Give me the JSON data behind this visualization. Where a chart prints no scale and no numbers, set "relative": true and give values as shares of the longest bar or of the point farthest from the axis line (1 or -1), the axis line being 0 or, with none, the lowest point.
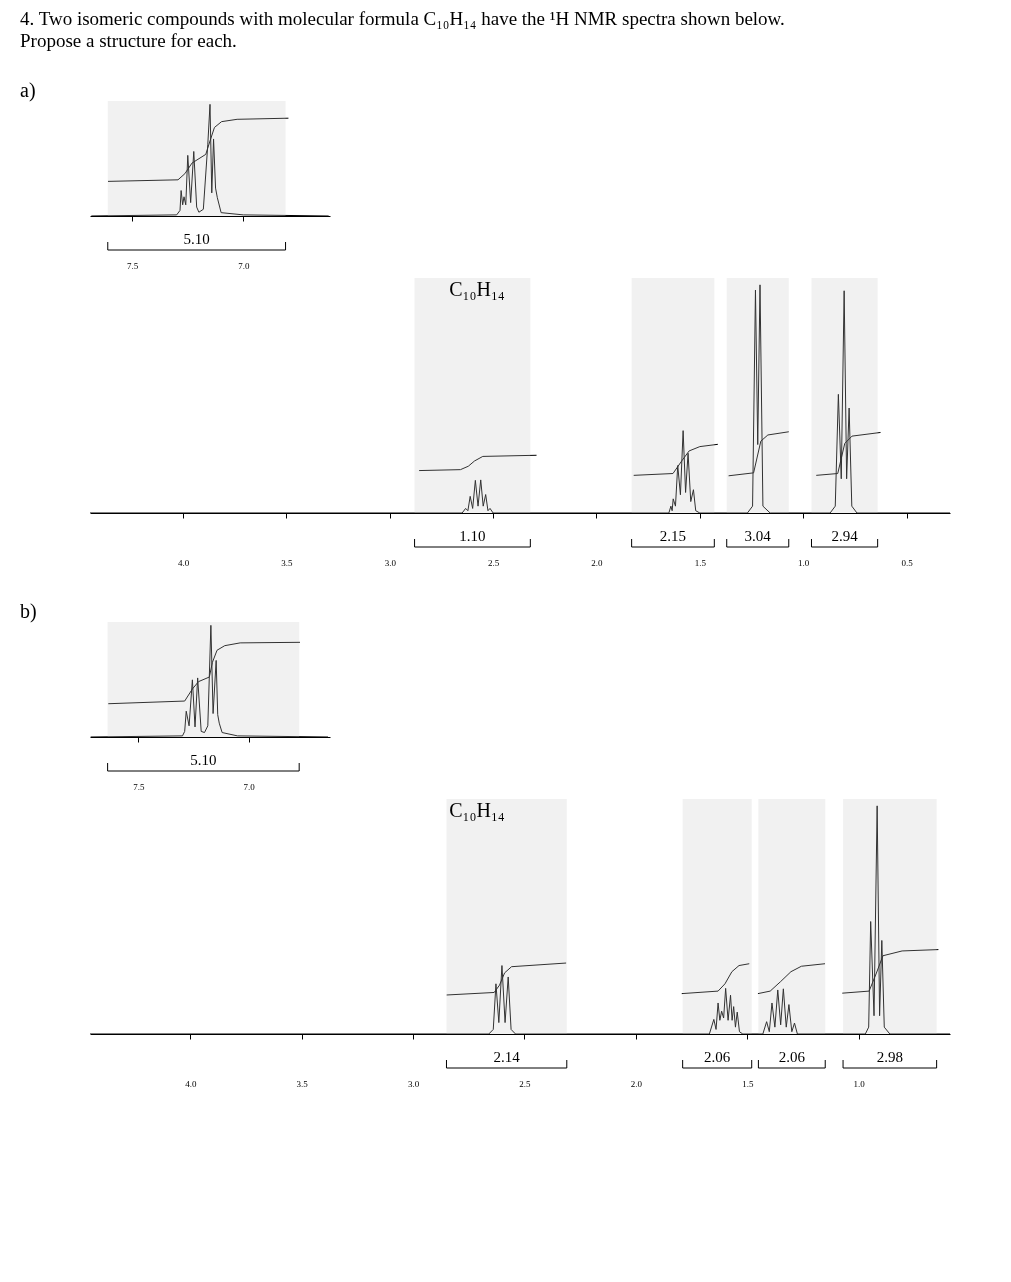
{
  "chart_data": [
    {
      "type": "line",
      "relative": true,
      "title": "4. Two isomeric compounds with molecular formula C₁₀H₁₄ have the ¹H NMR spectra shown below.",
      "subtitle": "Propose a structure for each.",
      "annotations": [
        "a)"
      ],
      "grid": false,
      "xlim": [
        7.69,
        6.61
      ],
      "xticks": [
        7.5,
        {
          "value": 7,
          "label": "7.0"
        }
      ],
      "series": [
        {
          "color": "#000000",
          "x": [
            7.684,
            7.3,
            7.285,
            7.28,
            7.273,
            7.267,
            7.259,
            7.25,
            7.237,
            7.223,
            7.21,
            7.2,
            7.18,
            7.16,
            7.15,
            7.142,
            7.134,
            7.125,
            7.117,
            7.1,
            7.0,
            6.616
          ],
          "values": [
            0,
            0.01,
            0.05,
            0.228,
            0.1,
            0.172,
            0.1,
            0.543,
            0.12,
            0.578,
            0.08,
            0.034,
            0.06,
            0.638,
            1.0,
            0.207,
            0.69,
            0.25,
            0.164,
            0.03,
            0.01,
            0
          ]
        },
        {
          "color": "#000000",
          "x": [
            7.609,
            7.294,
            7.263,
            7.231,
            7.169,
            7.15,
            7.13,
            7.098,
            7.028,
            6.797
          ],
          "values": [
            0.31,
            0.324,
            0.379,
            0.474,
            0.552,
            0.672,
            0.793,
            0.845,
            0.866,
            0.876
          ]
        }
      ],
      "bands": [
        {
          "axis": "x",
          "from": 7.61,
          "to": 6.81,
          "label": "5.10"
        }
      ]
    },
    {
      "type": "line",
      "relative": true,
      "annotations": [
        "C₁₀H₁₄"
      ],
      "grid": false,
      "xlim": [
        4.45,
        0.29
      ],
      "xticks": [
        {
          "value": 4,
          "label": "4.0"
        },
        3.5,
        {
          "value": 3,
          "label": "3.0"
        },
        2.5,
        {
          "value": 2,
          "label": "2.0"
        },
        1.5,
        {
          "value": 1,
          "label": "1.0"
        },
        0.5
      ],
      "series": [
        {
          "color": "#000000",
          "x": [
            4.45,
            2.65,
            2.633,
            2.622,
            2.611,
            2.599,
            2.586,
            2.573,
            2.56,
            2.548,
            2.536,
            2.525,
            2.515,
            2.5,
            1.65,
            1.64,
            1.634,
            1.629,
            1.618,
            1.607,
            1.594,
            1.581,
            1.569,
            1.557,
            1.544,
            1.531,
            1.52,
            1.5,
            1.27,
            1.245,
            1.231,
            1.22,
            1.209,
            1.195,
            1.16,
            0.87,
            0.845,
            0.83,
            0.816,
            0.802,
            0.79,
            0.778,
            0.765,
            0.74,
            0.29
          ],
          "values": [
            0,
            0,
            0.02,
            0.01,
            0.073,
            0.02,
            0.143,
            0.03,
            0.145,
            0.03,
            0.081,
            0.01,
            0.02,
            0,
            0,
            0.03,
            0.01,
            0.062,
            0.03,
            0.208,
            0.08,
            0.361,
            0.09,
            0.262,
            0.05,
            0.102,
            0.01,
            0,
            0,
            0.03,
            0.977,
            0.3,
            1.0,
            0.03,
            0,
            0,
            0.03,
            0.52,
            0.15,
            0.974,
            0.15,
            0.46,
            0.03,
            0,
            0
          ]
        },
        {
          "color": "#000000",
          "x": [
            2.858,
            2.658,
            2.62,
            2.59,
            2.55,
            2.29
          ],
          "values": [
            0.186,
            0.19,
            0.205,
            0.228,
            0.248,
            0.253
          ]
        },
        {
          "color": "#000000",
          "x": [
            1.82,
            1.63,
            1.587,
            1.552,
            1.5,
            1.413
          ],
          "values": [
            0.165,
            0.173,
            0.229,
            0.272,
            0.291,
            0.301
          ]
        },
        {
          "color": "#000000",
          "x": [
            1.361,
            1.24,
            1.205,
            1.171,
            1.07
          ],
          "values": [
            0.163,
            0.176,
            0.315,
            0.342,
            0.356
          ]
        },
        {
          "color": "#000000",
          "x": [
            0.937,
            0.833,
            0.799,
            0.764,
            0.626
          ],
          "values": [
            0.165,
            0.173,
            0.305,
            0.337,
            0.353
          ]
        }
      ],
      "bands": [
        {
          "axis": "x",
          "from": 2.88,
          "to": 2.32,
          "label": "1.10"
        },
        {
          "axis": "x",
          "from": 1.83,
          "to": 1.43,
          "label": "2.15"
        },
        {
          "axis": "x",
          "from": 1.37,
          "to": 1.07,
          "label": "3.04"
        },
        {
          "axis": "x",
          "from": 0.96,
          "to": 0.64,
          "label": "2.94"
        }
      ]
    },
    {
      "type": "line",
      "relative": true,
      "annotations": [
        "b)"
      ],
      "grid": false,
      "xlim": [
        7.72,
        6.63
      ],
      "xticks": [
        7.5,
        {
          "value": 7,
          "label": "7.0"
        }
      ],
      "series": [
        {
          "color": "#000000",
          "x": [
            7.717,
            7.3,
            7.29,
            7.283,
            7.27,
            7.255,
            7.243,
            7.231,
            7.215,
            7.2,
            7.185,
            7.171,
            7.161,
            7.147,
            7.14,
            7.133,
            7.12,
            7.05,
            6.639
          ],
          "values": [
            0,
            0.01,
            0.05,
            0.231,
            0.1,
            0.512,
            0.09,
            0.529,
            0.05,
            0.04,
            0.1,
            1.0,
            0.21,
            0.686,
            0.2,
            0.124,
            0.04,
            0.01,
            0
          ]
        },
        {
          "color": "#000000",
          "x": [
            7.637,
            7.29,
            7.255,
            7.227,
            7.178,
            7.164,
            7.143,
            7.108,
            7.038,
            6.767
          ],
          "values": [
            0.298,
            0.322,
            0.43,
            0.496,
            0.537,
            0.669,
            0.777,
            0.818,
            0.843,
            0.848
          ]
        }
      ],
      "bands": [
        {
          "axis": "x",
          "from": 7.64,
          "to": 6.77,
          "label": "5.10"
        }
      ]
    },
    {
      "type": "line",
      "relative": true,
      "annotations": [
        "C₁₀H₁₄"
      ],
      "grid": false,
      "xlim": [
        4.45,
        0.59
      ],
      "xticks": [
        {
          "value": 4,
          "label": "4.0"
        },
        3.5,
        {
          "value": 3,
          "label": "3.0"
        },
        2.5,
        {
          "value": 2,
          "label": "2.0"
        },
        1.5,
        {
          "value": 1,
          "label": "1.0"
        }
      ],
      "series": [
        {
          "color": "#000000",
          "x": [
            4.45,
            2.66,
            2.64,
            2.628,
            2.615,
            2.601,
            2.587,
            2.573,
            2.56,
            2.54,
            1.67,
            1.65,
            1.64,
            1.631,
            1.623,
            1.615,
            1.606,
            1.597,
            1.586,
            1.575,
            1.568,
            1.561,
            1.553,
            1.545,
            1.535,
            1.52,
            1.43,
            1.413,
            1.401,
            1.389,
            1.376,
            1.363,
            1.35,
            1.338,
            1.325,
            1.313,
            1.3,
            1.288,
            1.275,
            0.97,
            0.955,
            0.946,
            0.931,
            0.917,
            0.906,
            0.896,
            0.885,
            0.86,
            0.59
          ],
          "values": [
            0,
            0,
            0.02,
            0.22,
            0.05,
            0.3,
            0.05,
            0.25,
            0.02,
            0,
            0,
            0.064,
            0.02,
            0.136,
            0.06,
            0.1,
            0.07,
            0.2,
            0.06,
            0.17,
            0.06,
            0.12,
            0.03,
            0.096,
            0.01,
            0,
            0,
            0.054,
            0.01,
            0.136,
            0.03,
            0.193,
            0.04,
            0.198,
            0.03,
            0.129,
            0.01,
            0.048,
            0,
            0,
            0.03,
            0.493,
            0.08,
            1.0,
            0.08,
            0.41,
            0.03,
            0,
            0
          ]
        },
        {
          "color": "#000000",
          "x": [
            2.849,
            2.636,
            2.612,
            2.589,
            2.558,
            2.313
          ],
          "values": [
            0.171,
            0.182,
            0.214,
            0.268,
            0.295,
            0.311
          ]
        },
        {
          "color": "#000000",
          "x": [
            1.794,
            1.631,
            1.6,
            1.569,
            1.537,
            1.491
          ],
          "values": [
            0.177,
            0.188,
            0.22,
            0.273,
            0.3,
            0.308
          ]
        },
        {
          "color": "#000000",
          "x": [
            1.452,
            1.397,
            1.35,
            1.304,
            1.257,
            1.151
          ],
          "values": [
            0.177,
            0.188,
            0.23,
            0.273,
            0.297,
            0.308
          ]
        },
        {
          "color": "#000000",
          "x": [
            1.073,
            0.953,
            0.922,
            0.891,
            0.805,
            0.642
          ],
          "values": [
            0.179,
            0.188,
            0.263,
            0.343,
            0.364,
            0.37
          ]
        }
      ],
      "bands": [
        {
          "axis": "x",
          "from": 2.85,
          "to": 2.31,
          "label": "2.14"
        },
        {
          "axis": "x",
          "from": 1.79,
          "to": 1.48,
          "label": "2.06"
        },
        {
          "axis": "x",
          "from": 1.45,
          "to": 1.15,
          "label": "2.06"
        },
        {
          "axis": "x",
          "from": 1.07,
          "to": 0.65,
          "label": "2.98"
        }
      ]
    }
  ]
}
